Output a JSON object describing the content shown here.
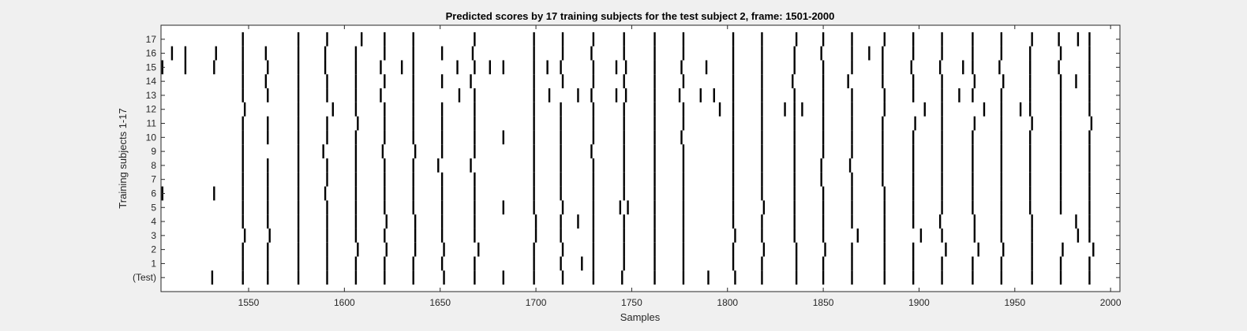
{
  "chart_data": {
    "type": "event raster",
    "title": "Predicted scores by 17 training subjects for the test subject 2, frame: 1501-2000",
    "xlabel": "Samples",
    "ylabel": "Training subjects 1-17",
    "xlim": [
      1501,
      2000
    ],
    "x_ticks": [
      1550,
      1600,
      1650,
      1700,
      1750,
      1800,
      1850,
      1900,
      1950,
      2000
    ],
    "y_tick_labels": [
      "(Test)",
      "1",
      "2",
      "3",
      "4",
      "5",
      "6",
      "7",
      "8",
      "9",
      "10",
      "11",
      "12",
      "13",
      "14",
      "15",
      "16",
      "17"
    ],
    "grid": false,
    "line_color": "#000000",
    "rows": [
      {
        "label": "(Test)",
        "events": [
          1531,
          1547,
          1560,
          1576,
          1591,
          1606,
          1621,
          1636,
          1652,
          1668,
          1683,
          1699,
          1714,
          1730,
          1745,
          1762,
          1777,
          1790,
          1804,
          1818,
          1836,
          1850,
          1865,
          1882,
          1897,
          1912,
          1928,
          1943,
          1959,
          1974,
          1989
        ]
      },
      {
        "label": "1",
        "events": [
          1547,
          1560,
          1576,
          1591,
          1606,
          1621,
          1636,
          1651,
          1668,
          1699,
          1713,
          1724,
          1730,
          1746,
          1762,
          1777,
          1803,
          1818,
          1836,
          1850,
          1865,
          1882,
          1897,
          1912,
          1928,
          1943,
          1959,
          1974,
          1989
        ]
      },
      {
        "label": "2",
        "events": [
          1547,
          1560,
          1576,
          1591,
          1607,
          1622,
          1637,
          1652,
          1670,
          1699,
          1714,
          1730,
          1746,
          1762,
          1777,
          1803,
          1819,
          1836,
          1851,
          1865,
          1882,
          1897,
          1914,
          1931,
          1944,
          1959,
          1975,
          1991
        ]
      },
      {
        "label": "3",
        "events": [
          1548,
          1561,
          1576,
          1591,
          1606,
          1621,
          1637,
          1651,
          1668,
          1700,
          1713,
          1730,
          1746,
          1762,
          1777,
          1804,
          1818,
          1835,
          1850,
          1868,
          1882,
          1901,
          1912,
          1929,
          1943,
          1959,
          1983,
          1989
        ]
      },
      {
        "label": "4",
        "events": [
          1547,
          1560,
          1576,
          1591,
          1606,
          1622,
          1637,
          1651,
          1668,
          1700,
          1713,
          1722,
          1730,
          1746,
          1762,
          1777,
          1803,
          1818,
          1835,
          1850,
          1865,
          1882,
          1897,
          1911,
          1929,
          1943,
          1959,
          1982,
          1989
        ]
      },
      {
        "label": "5",
        "events": [
          1547,
          1560,
          1576,
          1591,
          1606,
          1621,
          1636,
          1651,
          1668,
          1683,
          1699,
          1714,
          1730,
          1744,
          1748,
          1762,
          1777,
          1803,
          1819,
          1835,
          1850,
          1865,
          1882,
          1897,
          1912,
          1928,
          1943,
          1958,
          1974,
          1989
        ]
      },
      {
        "label": "6",
        "events": [
          1505,
          1532,
          1547,
          1560,
          1576,
          1590,
          1606,
          1621,
          1636,
          1651,
          1668,
          1699,
          1713,
          1730,
          1746,
          1762,
          1777,
          1803,
          1818,
          1835,
          1850,
          1865,
          1882,
          1897,
          1912,
          1928,
          1943,
          1958,
          1974,
          1989
        ]
      },
      {
        "label": "7",
        "events": [
          1547,
          1560,
          1576,
          1591,
          1606,
          1621,
          1636,
          1651,
          1668,
          1699,
          1713,
          1730,
          1746,
          1762,
          1777,
          1803,
          1818,
          1835,
          1849,
          1865,
          1881,
          1897,
          1912,
          1928,
          1943,
          1958,
          1974,
          1989
        ]
      },
      {
        "label": "8",
        "events": [
          1547,
          1560,
          1576,
          1591,
          1606,
          1621,
          1636,
          1649,
          1666,
          1699,
          1713,
          1730,
          1746,
          1762,
          1777,
          1803,
          1818,
          1835,
          1849,
          1864,
          1881,
          1897,
          1912,
          1928,
          1943,
          1958,
          1974,
          1989
        ]
      },
      {
        "label": "9",
        "events": [
          1547,
          1576,
          1589,
          1606,
          1620,
          1637,
          1651,
          1668,
          1699,
          1713,
          1729,
          1746,
          1762,
          1777,
          1803,
          1818,
          1835,
          1850,
          1865,
          1881,
          1897,
          1912,
          1928,
          1943,
          1958,
          1974,
          1989
        ]
      },
      {
        "label": "10",
        "events": [
          1547,
          1560,
          1576,
          1591,
          1606,
          1621,
          1636,
          1651,
          1668,
          1683,
          1699,
          1713,
          1730,
          1746,
          1762,
          1776,
          1803,
          1818,
          1835,
          1850,
          1865,
          1881,
          1897,
          1912,
          1928,
          1943,
          1958,
          1974,
          1989
        ]
      },
      {
        "label": "11",
        "events": [
          1547,
          1560,
          1576,
          1591,
          1607,
          1621,
          1636,
          1651,
          1668,
          1699,
          1713,
          1730,
          1746,
          1762,
          1777,
          1803,
          1818,
          1835,
          1850,
          1865,
          1881,
          1898,
          1912,
          1929,
          1943,
          1959,
          1974,
          1990
        ]
      },
      {
        "label": "12",
        "events": [
          1548,
          1576,
          1594,
          1606,
          1621,
          1636,
          1651,
          1668,
          1699,
          1713,
          1730,
          1746,
          1762,
          1777,
          1796,
          1803,
          1818,
          1830,
          1835,
          1839,
          1850,
          1865,
          1882,
          1903,
          1912,
          1934,
          1943,
          1953,
          1958,
          1974,
          1989
        ]
      },
      {
        "label": "13",
        "events": [
          1547,
          1560,
          1576,
          1591,
          1606,
          1619,
          1636,
          1660,
          1668,
          1699,
          1707,
          1722,
          1729,
          1742,
          1747,
          1762,
          1775,
          1786,
          1793,
          1803,
          1818,
          1835,
          1850,
          1865,
          1882,
          1897,
          1912,
          1921,
          1928,
          1943,
          1958,
          1974,
          1989
        ]
      },
      {
        "label": "14",
        "events": [
          1547,
          1559,
          1576,
          1591,
          1606,
          1621,
          1636,
          1651,
          1666,
          1699,
          1714,
          1730,
          1746,
          1762,
          1777,
          1803,
          1818,
          1834,
          1850,
          1863,
          1881,
          1897,
          1912,
          1929,
          1944,
          1958,
          1974,
          1982,
          1989
        ]
      },
      {
        "label": "15",
        "events": [
          1505,
          1517,
          1532,
          1547,
          1560,
          1576,
          1590,
          1606,
          1619,
          1630,
          1636,
          1659,
          1668,
          1676,
          1683,
          1699,
          1706,
          1713,
          1730,
          1742,
          1747,
          1762,
          1776,
          1789,
          1803,
          1818,
          1835,
          1850,
          1865,
          1881,
          1896,
          1911,
          1923,
          1928,
          1942,
          1958,
          1973,
          1989
        ]
      },
      {
        "label": "16",
        "events": [
          1510,
          1517,
          1533,
          1547,
          1559,
          1576,
          1590,
          1606,
          1621,
          1636,
          1651,
          1667,
          1699,
          1714,
          1729,
          1746,
          1762,
          1777,
          1803,
          1818,
          1835,
          1849,
          1865,
          1874,
          1881,
          1897,
          1912,
          1928,
          1943,
          1958,
          1974,
          1989
        ]
      },
      {
        "label": "17",
        "events": [
          1547,
          1576,
          1591,
          1609,
          1621,
          1636,
          1668,
          1699,
          1714,
          1730,
          1746,
          1762,
          1777,
          1803,
          1818,
          1836,
          1850,
          1865,
          1882,
          1897,
          1912,
          1928,
          1943,
          1959,
          1973,
          1983,
          1989
        ]
      }
    ]
  }
}
